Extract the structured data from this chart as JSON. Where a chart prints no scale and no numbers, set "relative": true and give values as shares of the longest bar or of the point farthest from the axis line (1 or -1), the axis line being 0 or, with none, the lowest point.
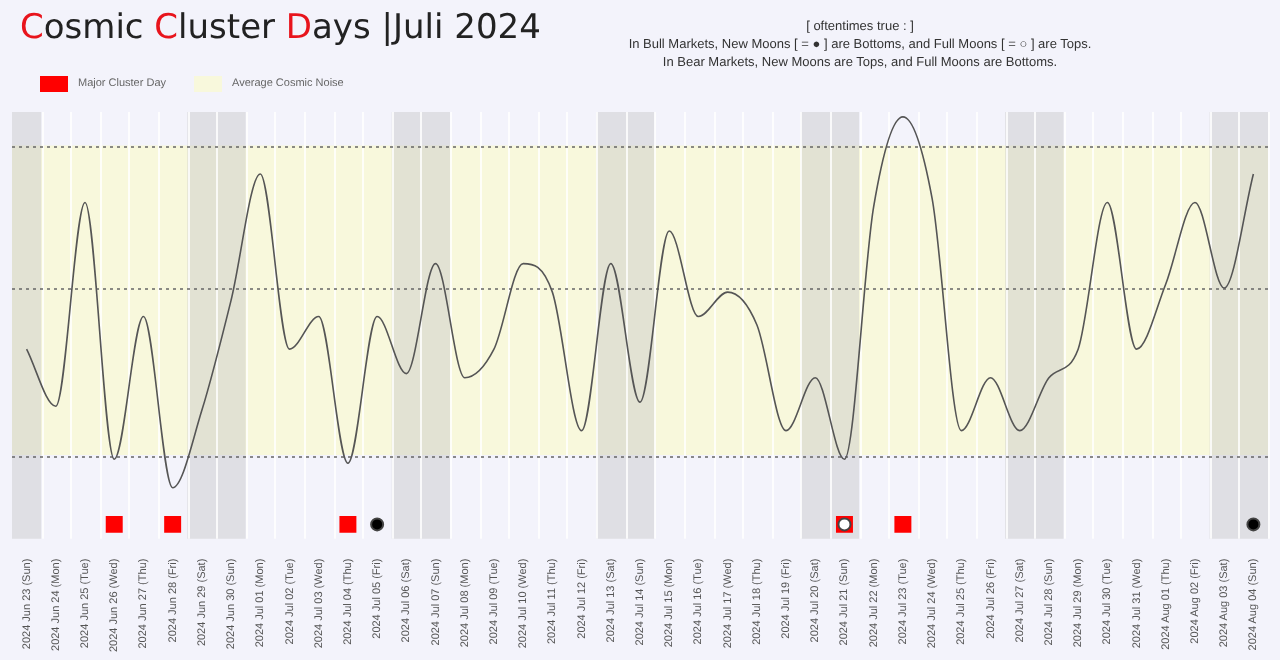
{
  "chart_data": {
    "type": "line",
    "title": "Cosmic Cluster Days |Juli 2024",
    "subtitle": "[ oftentimes true : ]\nIn Bull Markets, New Moons [ = ● ] are Bottoms, and Full Moons [ = ○ ] are Tops.\nIn Bear Markets, New Moons are Tops, and Full Moons are Bottoms.",
    "categories": [
      "2024 Jun 23 (Sun)",
      "2024 Jun 24 (Mon)",
      "2024 Jun 25 (Tue)",
      "2024 Jun 26 (Wed)",
      "2024 Jun 27 (Thu)",
      "2024 Jun 28 (Fri)",
      "2024 Jun 29 (Sat)",
      "2024 Jun 30 (Sun)",
      "2024 Jul 01 (Mon)",
      "2024 Jul 02 (Tue)",
      "2024 Jul 03 (Wed)",
      "2024 Jul 04 (Thu)",
      "2024 Jul 05 (Fri)",
      "2024 Jul 06 (Sat)",
      "2024 Jul 07 (Sun)",
      "2024 Jul 08 (Mon)",
      "2024 Jul 09 (Tue)",
      "2024 Jul 10 (Wed)",
      "2024 Jul 11 (Thu)",
      "2024 Jul 12 (Fri)",
      "2024 Jul 13 (Sat)",
      "2024 Jul 14 (Sun)",
      "2024 Jul 15 (Mon)",
      "2024 Jul 16 (Tue)",
      "2024 Jul 17 (Wed)",
      "2024 Jul 18 (Thu)",
      "2024 Jul 19 (Fri)",
      "2024 Jul 20 (Sat)",
      "2024 Jul 21 (Sun)",
      "2024 Jul 22 (Mon)",
      "2024 Jul 23 (Tue)",
      "2024 Jul 24 (Wed)",
      "2024 Jul 25 (Thu)",
      "2024 Jul 26 (Fri)",
      "2024 Jul 27 (Sat)",
      "2024 Jul 28 (Sun)",
      "2024 Jul 29 (Mon)",
      "2024 Jul 30 (Tue)",
      "2024 Jul 31 (Wed)",
      "2024 Aug 01 (Thu)",
      "2024 Aug 02 (Fri)",
      "2024 Aug 03 (Sat)",
      "2024 Aug 04 (Sun)"
    ],
    "relative": true,
    "series": [
      {
        "color": "#555555",
        "values": [
          0.43,
          0.29,
          0.79,
          0.16,
          0.51,
          0.09,
          0.28,
          0.55,
          0.86,
          0.43,
          0.51,
          0.15,
          0.51,
          0.37,
          0.64,
          0.36,
          0.43,
          0.64,
          0.57,
          0.23,
          0.64,
          0.3,
          0.72,
          0.51,
          0.57,
          0.49,
          0.23,
          0.36,
          0.16,
          0.78,
          1,
          0.8,
          0.23,
          0.36,
          0.23,
          0.36,
          0.43,
          0.79,
          0.43,
          0.59,
          0.79,
          0.58,
          0.86
        ]
      },
      {
        "name": "Major Cluster Day",
        "type": "scatter",
        "marker": "square",
        "color": "#ff0000",
        "values": [
          null,
          null,
          null,
          0,
          null,
          0,
          null,
          null,
          null,
          null,
          null,
          0,
          null,
          null,
          null,
          null,
          null,
          null,
          null,
          null,
          null,
          null,
          null,
          null,
          null,
          null,
          null,
          null,
          0,
          null,
          0,
          null,
          null,
          null,
          null,
          null,
          null,
          null,
          null,
          null,
          null,
          null,
          null
        ]
      },
      {
        "type": "scatter",
        "marker": "circle",
        "color": "#000000",
        "values": [
          null,
          null,
          null,
          null,
          null,
          null,
          null,
          null,
          null,
          null,
          null,
          null,
          0,
          null,
          null,
          null,
          null,
          null,
          null,
          null,
          null,
          null,
          null,
          null,
          null,
          null,
          null,
          null,
          null,
          null,
          null,
          null,
          null,
          null,
          null,
          null,
          null,
          null,
          null,
          null,
          null,
          null,
          0
        ]
      },
      {
        "type": "scatter",
        "marker": "circle",
        "color": "#ffffff",
        "values": [
          null,
          null,
          null,
          null,
          null,
          null,
          null,
          null,
          null,
          null,
          null,
          null,
          null,
          null,
          null,
          null,
          null,
          null,
          null,
          null,
          null,
          null,
          null,
          null,
          null,
          null,
          null,
          null,
          0,
          null,
          null,
          null,
          null,
          null,
          null,
          null,
          null,
          null,
          null,
          null,
          null,
          null,
          null
        ]
      }
    ],
    "bands": [
      {
        "axis": "y",
        "from": 0.17,
        "to": 0.93,
        "label": "Average Cosmic Noise",
        "color": "#f8f8dc"
      },
      {
        "axis": "x",
        "from": "2024 Jun 23 (Sun)",
        "to": "2024 Jun 23 (Sun)",
        "color": "#c8c8c8"
      },
      {
        "axis": "x",
        "from": "2024 Jun 29 (Sat)",
        "to": "2024 Jun 30 (Sun)",
        "color": "#c8c8c8"
      },
      {
        "axis": "x",
        "from": "2024 Jul 06 (Sat)",
        "to": "2024 Jul 07 (Sun)",
        "color": "#c8c8c8"
      },
      {
        "axis": "x",
        "from": "2024 Jul 13 (Sat)",
        "to": "2024 Jul 14 (Sun)",
        "color": "#c8c8c8"
      },
      {
        "axis": "x",
        "from": "2024 Jul 20 (Sat)",
        "to": "2024 Jul 21 (Sun)",
        "color": "#c8c8c8"
      },
      {
        "axis": "x",
        "from": "2024 Jul 27 (Sat)",
        "to": "2024 Jul 28 (Sun)",
        "color": "#c8c8c8"
      },
      {
        "axis": "x",
        "from": "2024 Aug 03 (Sat)",
        "to": "2024 Aug 04 (Sun)",
        "color": "#c8c8c8"
      }
    ],
    "ref_lines": [
      {
        "axis": "y",
        "value": 0.93,
        "color": "#666666",
        "line_style": "dotted"
      },
      {
        "axis": "y",
        "value": 0.58,
        "color": "#666666",
        "line_style": "dotted"
      },
      {
        "axis": "y",
        "value": 0.17,
        "color": "#666666",
        "line_style": "dotted"
      }
    ],
    "grid": "x",
    "legend": "top left",
    "marker": "none",
    "line_style": "solid"
  }
}
